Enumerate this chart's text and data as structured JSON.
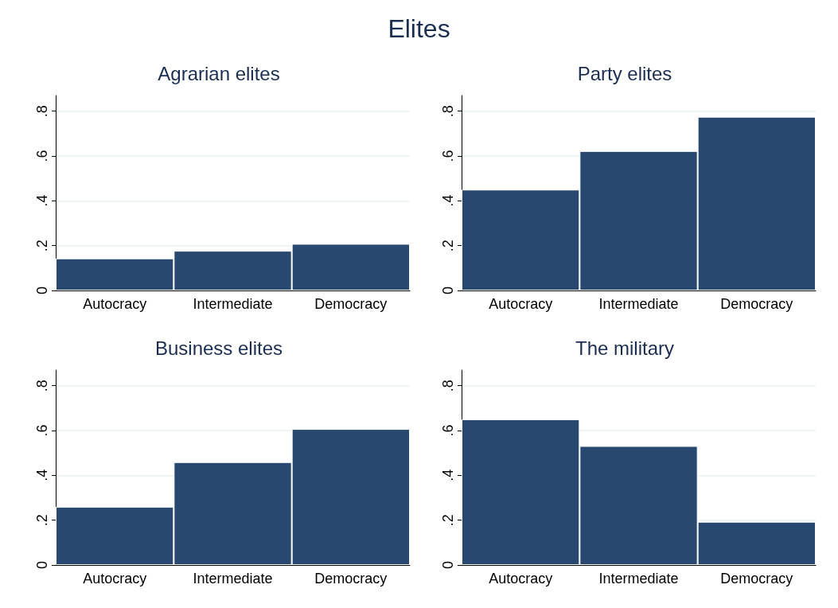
{
  "chart_data": [
    {
      "type": "bar",
      "title": "Agrarian elites",
      "annotations": [
        "Elites"
      ],
      "categories": [
        "Autocracy",
        "Intermediate",
        "Democracy"
      ],
      "values": [
        0.143,
        0.177,
        0.208
      ],
      "color": "#284870",
      "ylim": [
        0,
        0.87
      ],
      "yticks": [
        {
          "value": 0,
          "label": "0"
        },
        {
          "value": 0.2,
          "label": ".2"
        },
        {
          "value": 0.4,
          "label": ".4"
        },
        {
          "value": 0.6,
          "label": ".6"
        },
        {
          "value": 0.8,
          "label": ".8"
        }
      ],
      "grid": "y"
    },
    {
      "type": "bar",
      "title": "Party elites",
      "categories": [
        "Autocracy",
        "Intermediate",
        "Democracy"
      ],
      "values": [
        0.45,
        0.622,
        0.775
      ],
      "color": "#284870",
      "ylim": [
        0,
        0.87
      ],
      "yticks": [
        {
          "value": 0,
          "label": "0"
        },
        {
          "value": 0.2,
          "label": ".2"
        },
        {
          "value": 0.4,
          "label": ".4"
        },
        {
          "value": 0.6,
          "label": ".6"
        },
        {
          "value": 0.8,
          "label": ".8"
        }
      ],
      "grid": "y"
    },
    {
      "type": "bar",
      "title": "Business elites",
      "categories": [
        "Autocracy",
        "Intermediate",
        "Democracy"
      ],
      "values": [
        0.26,
        0.459,
        0.607
      ],
      "color": "#284870",
      "ylim": [
        0,
        0.87
      ],
      "yticks": [
        {
          "value": 0,
          "label": "0"
        },
        {
          "value": 0.2,
          "label": ".2"
        },
        {
          "value": 0.4,
          "label": ".4"
        },
        {
          "value": 0.6,
          "label": ".6"
        },
        {
          "value": 0.8,
          "label": ".8"
        }
      ],
      "grid": "y"
    },
    {
      "type": "bar",
      "title": "The military",
      "categories": [
        "Autocracy",
        "Intermediate",
        "Democracy"
      ],
      "values": [
        0.65,
        0.531,
        0.193
      ],
      "color": "#284870",
      "ylim": [
        0,
        0.87
      ],
      "yticks": [
        {
          "value": 0,
          "label": "0"
        },
        {
          "value": 0.2,
          "label": ".2"
        },
        {
          "value": 0.4,
          "label": ".4"
        },
        {
          "value": 0.6,
          "label": ".6"
        },
        {
          "value": 0.8,
          "label": ".8"
        }
      ],
      "grid": "y"
    }
  ]
}
